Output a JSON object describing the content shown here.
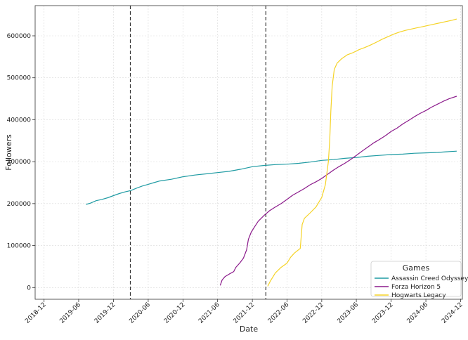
{
  "chart_data": {
    "type": "line",
    "title": "",
    "xlabel": "Date",
    "ylabel": "Followers",
    "grid": true,
    "x_range": [
      "2018-10-15",
      "2024-12-10"
    ],
    "ylim": [
      -28000,
      672000
    ],
    "x_ticks": [
      "2018-12",
      "2019-06",
      "2019-12",
      "2020-06",
      "2020-12",
      "2021-06",
      "2021-12",
      "2022-06",
      "2022-12",
      "2023-06",
      "2023-12",
      "2024-06",
      "2024-12"
    ],
    "y_ticks": [
      0,
      100000,
      200000,
      300000,
      400000,
      500000,
      600000
    ],
    "vlines": [
      "2020-02-28",
      "2022-02-10"
    ],
    "legend": {
      "title": "Games",
      "position": "lower right"
    },
    "series": [
      {
        "name": "Assassin Creed Odyssey",
        "color": "#1f9ba3",
        "points": [
          [
            "2019-07-10",
            198000
          ],
          [
            "2019-08-01",
            201000
          ],
          [
            "2019-09-01",
            207000
          ],
          [
            "2019-10-01",
            210000
          ],
          [
            "2019-11-01",
            214000
          ],
          [
            "2019-12-01",
            219000
          ],
          [
            "2020-01-01",
            224000
          ],
          [
            "2020-02-01",
            228000
          ],
          [
            "2020-03-01",
            231000
          ],
          [
            "2020-04-01",
            237000
          ],
          [
            "2020-05-01",
            242000
          ],
          [
            "2020-06-01",
            246000
          ],
          [
            "2020-07-01",
            250000
          ],
          [
            "2020-08-01",
            254000
          ],
          [
            "2020-10-01",
            258000
          ],
          [
            "2020-12-01",
            264000
          ],
          [
            "2021-02-01",
            268000
          ],
          [
            "2021-04-01",
            271000
          ],
          [
            "2021-06-01",
            274000
          ],
          [
            "2021-08-01",
            277000
          ],
          [
            "2021-10-01",
            282000
          ],
          [
            "2021-12-01",
            288000
          ],
          [
            "2022-02-01",
            291000
          ],
          [
            "2022-04-01",
            293000
          ],
          [
            "2022-06-01",
            294000
          ],
          [
            "2022-08-01",
            296000
          ],
          [
            "2022-10-01",
            299000
          ],
          [
            "2022-12-01",
            303000
          ],
          [
            "2023-02-01",
            305000
          ],
          [
            "2023-04-01",
            308000
          ],
          [
            "2023-06-01",
            310000
          ],
          [
            "2023-08-01",
            313000
          ],
          [
            "2023-10-01",
            315000
          ],
          [
            "2023-12-01",
            317000
          ],
          [
            "2024-02-01",
            318000
          ],
          [
            "2024-04-01",
            320000
          ],
          [
            "2024-06-01",
            321000
          ],
          [
            "2024-08-01",
            322000
          ],
          [
            "2024-10-01",
            324000
          ],
          [
            "2024-11-10",
            325000
          ]
        ]
      },
      {
        "name": "Forza Horizon 5",
        "color": "#8b1a8b",
        "points": [
          [
            "2021-06-15",
            5000
          ],
          [
            "2021-06-25",
            18000
          ],
          [
            "2021-07-10",
            26000
          ],
          [
            "2021-08-01",
            32000
          ],
          [
            "2021-08-25",
            38000
          ],
          [
            "2021-09-05",
            48000
          ],
          [
            "2021-09-25",
            58000
          ],
          [
            "2021-10-15",
            70000
          ],
          [
            "2021-11-01",
            90000
          ],
          [
            "2021-11-10",
            115000
          ],
          [
            "2021-11-25",
            132000
          ],
          [
            "2021-12-10",
            143000
          ],
          [
            "2022-01-01",
            158000
          ],
          [
            "2022-02-01",
            172000
          ],
          [
            "2022-03-01",
            183000
          ],
          [
            "2022-04-01",
            192000
          ],
          [
            "2022-05-01",
            200000
          ],
          [
            "2022-06-01",
            210000
          ],
          [
            "2022-07-01",
            220000
          ],
          [
            "2022-08-01",
            228000
          ],
          [
            "2022-09-01",
            236000
          ],
          [
            "2022-10-01",
            245000
          ],
          [
            "2022-11-01",
            252000
          ],
          [
            "2022-12-01",
            260000
          ],
          [
            "2023-01-01",
            270000
          ],
          [
            "2023-02-01",
            280000
          ],
          [
            "2023-03-01",
            288000
          ],
          [
            "2023-04-01",
            296000
          ],
          [
            "2023-05-01",
            305000
          ],
          [
            "2023-06-01",
            315000
          ],
          [
            "2023-07-01",
            325000
          ],
          [
            "2023-08-01",
            335000
          ],
          [
            "2023-09-01",
            345000
          ],
          [
            "2023-10-01",
            353000
          ],
          [
            "2023-11-01",
            362000
          ],
          [
            "2023-12-01",
            372000
          ],
          [
            "2024-01-01",
            380000
          ],
          [
            "2024-02-01",
            390000
          ],
          [
            "2024-03-01",
            398000
          ],
          [
            "2024-04-01",
            407000
          ],
          [
            "2024-05-01",
            415000
          ],
          [
            "2024-06-01",
            422000
          ],
          [
            "2024-07-01",
            430000
          ],
          [
            "2024-08-01",
            437000
          ],
          [
            "2024-09-01",
            444000
          ],
          [
            "2024-10-01",
            450000
          ],
          [
            "2024-11-10",
            456000
          ]
        ]
      },
      {
        "name": "Hogwarts Legacy",
        "color": "#f5d327",
        "points": [
          [
            "2022-02-20",
            3000
          ],
          [
            "2022-03-05",
            15000
          ],
          [
            "2022-04-01",
            35000
          ],
          [
            "2022-05-01",
            48000
          ],
          [
            "2022-06-01",
            58000
          ],
          [
            "2022-06-20",
            72000
          ],
          [
            "2022-07-10",
            82000
          ],
          [
            "2022-08-01",
            90000
          ],
          [
            "2022-08-10",
            93000
          ],
          [
            "2022-08-20",
            150000
          ],
          [
            "2022-09-01",
            165000
          ],
          [
            "2022-10-01",
            178000
          ],
          [
            "2022-11-01",
            192000
          ],
          [
            "2022-12-01",
            215000
          ],
          [
            "2022-12-20",
            245000
          ],
          [
            "2023-01-05",
            300000
          ],
          [
            "2023-01-12",
            350000
          ],
          [
            "2023-01-18",
            420000
          ],
          [
            "2023-01-25",
            480000
          ],
          [
            "2023-02-05",
            520000
          ],
          [
            "2023-02-20",
            535000
          ],
          [
            "2023-03-15",
            545000
          ],
          [
            "2023-04-15",
            555000
          ],
          [
            "2023-05-15",
            560000
          ],
          [
            "2023-06-15",
            567000
          ],
          [
            "2023-07-15",
            572000
          ],
          [
            "2023-08-15",
            578000
          ],
          [
            "2023-09-15",
            585000
          ],
          [
            "2023-10-15",
            592000
          ],
          [
            "2023-11-15",
            598000
          ],
          [
            "2023-12-15",
            604000
          ],
          [
            "2024-01-15",
            609000
          ],
          [
            "2024-02-15",
            613000
          ],
          [
            "2024-03-15",
            616000
          ],
          [
            "2024-04-15",
            619000
          ],
          [
            "2024-05-15",
            622000
          ],
          [
            "2024-06-15",
            625000
          ],
          [
            "2024-07-15",
            628000
          ],
          [
            "2024-08-15",
            631000
          ],
          [
            "2024-09-15",
            634000
          ],
          [
            "2024-10-15",
            637000
          ],
          [
            "2024-11-10",
            640000
          ]
        ]
      }
    ]
  }
}
